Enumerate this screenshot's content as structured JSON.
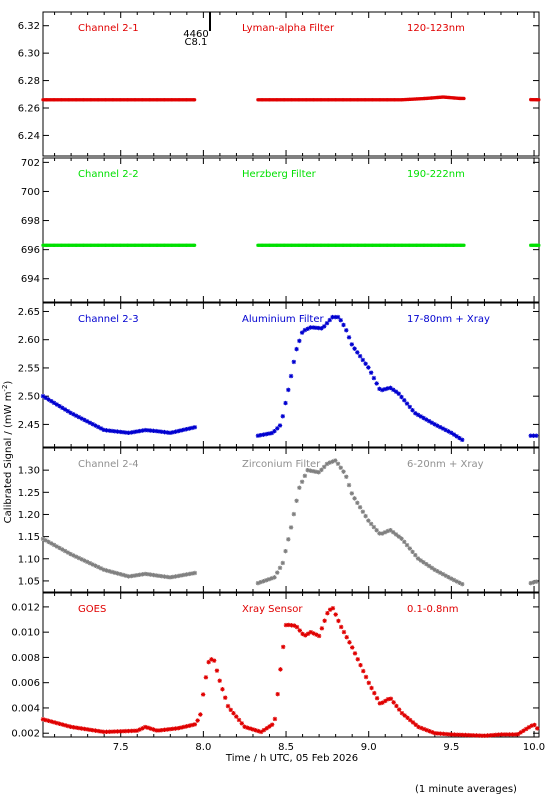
{
  "chart_data": {
    "type": "scatter",
    "xlabel": "Time / h UTC, 05 Feb 2026",
    "ylabel": "Calibrated Signal / (mW m",
    "ylabel_superscript": "-2",
    "ylabel_suffix": ")",
    "footnote": "(1 minute averages)",
    "xlim": [
      7.03,
      10.03
    ],
    "xticks": [
      7.5,
      8.0,
      8.5,
      9.0,
      9.5,
      10.0
    ],
    "xtick_labels": [
      "7.5",
      "8.0",
      "8.5",
      "9.0",
      "9.5",
      "10.0"
    ],
    "annotation": {
      "x": 8.04,
      "text_line1": "4460",
      "text_line2": "C8.1"
    },
    "panels": [
      {
        "id": "p1",
        "channel": "Channel 2-1",
        "filter": "Lyman-alpha Filter",
        "band": "120-123nm",
        "color": "#e00000",
        "label_color": "#e00000",
        "ylim": [
          6.225,
          6.33
        ],
        "yticks": [
          6.24,
          6.26,
          6.28,
          6.3,
          6.32
        ],
        "ytick_labels": [
          "6.24",
          "6.26",
          "6.28",
          "6.30",
          "6.32"
        ],
        "series_x": [
          [
            7.03,
            7.95
          ],
          [
            8.33,
            9.58
          ],
          [
            9.98,
            10.03
          ]
        ],
        "profile": [
          [
            7.03,
            6.266
          ],
          [
            7.95,
            6.266
          ],
          [
            8.33,
            6.266
          ],
          [
            9.2,
            6.266
          ],
          [
            9.35,
            6.267
          ],
          [
            9.45,
            6.268
          ],
          [
            9.55,
            6.267
          ],
          [
            10.03,
            6.266
          ]
        ]
      },
      {
        "id": "p2",
        "channel": "Channel 2-2",
        "filter": "Herzberg Filter",
        "band": "190-222nm",
        "color": "#00e000",
        "label_color": "#00e000",
        "ylim": [
          692.4,
          702.3
        ],
        "yticks": [
          694,
          696,
          698,
          700,
          702
        ],
        "ytick_labels": [
          "694",
          "696",
          "698",
          "700",
          "702"
        ],
        "series_x": [
          [
            7.03,
            7.95
          ],
          [
            8.33,
            9.58
          ],
          [
            9.98,
            10.03
          ]
        ],
        "profile": [
          [
            7.03,
            696.3
          ],
          [
            10.03,
            696.3
          ]
        ]
      },
      {
        "id": "p3",
        "channel": "Channel 2-3",
        "filter": "Aluminium Filter",
        "band": "17-80nm + Xray",
        "color": "#0000d0",
        "label_color": "#0000d0",
        "ylim": [
          2.41,
          2.665
        ],
        "yticks": [
          2.45,
          2.5,
          2.55,
          2.6,
          2.65
        ],
        "ytick_labels": [
          "2.45",
          "2.50",
          "2.55",
          "2.60",
          "2.65"
        ],
        "series_x": [
          [
            7.03,
            7.95
          ],
          [
            8.33,
            9.58
          ],
          [
            9.98,
            10.03
          ]
        ],
        "profile": [
          [
            7.03,
            2.5
          ],
          [
            7.2,
            2.47
          ],
          [
            7.4,
            2.44
          ],
          [
            7.55,
            2.435
          ],
          [
            7.65,
            2.44
          ],
          [
            7.72,
            2.438
          ],
          [
            7.8,
            2.435
          ],
          [
            7.95,
            2.445
          ],
          [
            8.33,
            2.43
          ],
          [
            8.42,
            2.435
          ],
          [
            8.47,
            2.45
          ],
          [
            8.52,
            2.52
          ],
          [
            8.56,
            2.58
          ],
          [
            8.6,
            2.615
          ],
          [
            8.65,
            2.622
          ],
          [
            8.72,
            2.62
          ],
          [
            8.78,
            2.64
          ],
          [
            8.82,
            2.64
          ],
          [
            8.86,
            2.62
          ],
          [
            8.9,
            2.59
          ],
          [
            9.0,
            2.55
          ],
          [
            9.07,
            2.51
          ],
          [
            9.13,
            2.515
          ],
          [
            9.18,
            2.505
          ],
          [
            9.28,
            2.47
          ],
          [
            9.4,
            2.45
          ],
          [
            9.5,
            2.435
          ],
          [
            9.58,
            2.42
          ],
          [
            9.98,
            2.43
          ],
          [
            10.03,
            2.43
          ]
        ]
      },
      {
        "id": "p4",
        "channel": "Channel 2-4",
        "filter": "Zirconium Filter",
        "band": "6-20nm + Xray",
        "color": "#808080",
        "label_color": "#909090",
        "ylim": [
          1.025,
          1.35
        ],
        "yticks": [
          1.05,
          1.1,
          1.15,
          1.2,
          1.25,
          1.3
        ],
        "ytick_labels": [
          "1.05",
          "1.10",
          "1.15",
          "1.20",
          "1.25",
          "1.30"
        ],
        "series_x": [
          [
            7.03,
            7.95
          ],
          [
            8.33,
            9.58
          ],
          [
            9.98,
            10.03
          ]
        ],
        "profile": [
          [
            7.03,
            1.145
          ],
          [
            7.2,
            1.11
          ],
          [
            7.4,
            1.075
          ],
          [
            7.55,
            1.06
          ],
          [
            7.65,
            1.066
          ],
          [
            7.72,
            1.062
          ],
          [
            7.8,
            1.058
          ],
          [
            7.95,
            1.068
          ],
          [
            8.33,
            1.045
          ],
          [
            8.43,
            1.058
          ],
          [
            8.48,
            1.09
          ],
          [
            8.53,
            1.17
          ],
          [
            8.58,
            1.26
          ],
          [
            8.63,
            1.3
          ],
          [
            8.7,
            1.295
          ],
          [
            8.75,
            1.315
          ],
          [
            8.8,
            1.322
          ],
          [
            8.86,
            1.29
          ],
          [
            8.9,
            1.245
          ],
          [
            9.0,
            1.185
          ],
          [
            9.07,
            1.155
          ],
          [
            9.13,
            1.165
          ],
          [
            9.2,
            1.145
          ],
          [
            9.3,
            1.1
          ],
          [
            9.4,
            1.075
          ],
          [
            9.5,
            1.055
          ],
          [
            9.58,
            1.04
          ],
          [
            9.98,
            1.045
          ],
          [
            10.03,
            1.05
          ]
        ]
      },
      {
        "id": "p5",
        "channel": "GOES",
        "filter": "Xray Sensor",
        "band": "0.1-0.8nm",
        "color": "#e00000",
        "label_color": "#e00000",
        "ylim": [
          0.0017,
          0.0131
        ],
        "yticks": [
          0.002,
          0.004,
          0.006,
          0.008,
          0.01,
          0.012
        ],
        "ytick_labels": [
          "0.002",
          "0.004",
          "0.006",
          "0.008",
          "0.010",
          "0.012"
        ],
        "series_x": [
          [
            7.03,
            10.03
          ]
        ],
        "profile": [
          [
            7.03,
            0.0031
          ],
          [
            7.2,
            0.0025
          ],
          [
            7.4,
            0.0021
          ],
          [
            7.6,
            0.0022
          ],
          [
            7.65,
            0.0025
          ],
          [
            7.72,
            0.0022
          ],
          [
            7.85,
            0.0024
          ],
          [
            7.95,
            0.0027
          ],
          [
            7.98,
            0.0033
          ],
          [
            8.0,
            0.0052
          ],
          [
            8.03,
            0.0076
          ],
          [
            8.06,
            0.008
          ],
          [
            8.1,
            0.0061
          ],
          [
            8.15,
            0.0041
          ],
          [
            8.25,
            0.0025
          ],
          [
            8.35,
            0.0021
          ],
          [
            8.43,
            0.0028
          ],
          [
            8.47,
            0.0075
          ],
          [
            8.5,
            0.0106
          ],
          [
            8.56,
            0.0105
          ],
          [
            8.61,
            0.0097
          ],
          [
            8.65,
            0.01
          ],
          [
            8.7,
            0.0097
          ],
          [
            8.75,
            0.0115
          ],
          [
            8.78,
            0.012
          ],
          [
            8.83,
            0.0105
          ],
          [
            8.9,
            0.0088
          ],
          [
            9.0,
            0.006
          ],
          [
            9.07,
            0.0043
          ],
          [
            9.13,
            0.0048
          ],
          [
            9.2,
            0.0036
          ],
          [
            9.3,
            0.0025
          ],
          [
            9.4,
            0.002
          ],
          [
            9.5,
            0.0019
          ],
          [
            9.7,
            0.0018
          ],
          [
            9.8,
            0.0019
          ],
          [
            9.9,
            0.0019
          ],
          [
            9.96,
            0.0024
          ],
          [
            10.0,
            0.0027
          ],
          [
            10.03,
            0.0022
          ]
        ]
      }
    ]
  }
}
